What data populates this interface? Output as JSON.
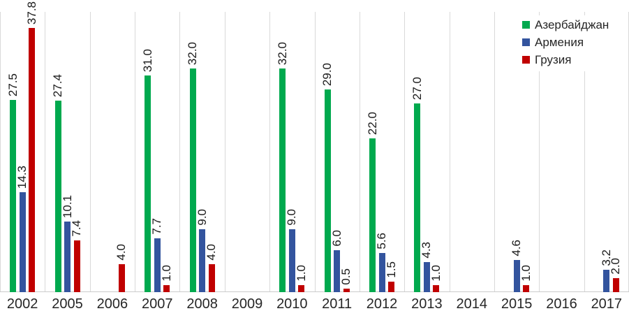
{
  "chart_data": {
    "type": "bar",
    "title": "",
    "xlabel": "",
    "ylabel": "",
    "ylim": [
      0,
      40
    ],
    "grid": "vertical-category-separators-only",
    "legend_position": "top-right",
    "value_label_rotation": "90deg-bottom-to-top",
    "value_label_decimals": 1,
    "categories": [
      "2002",
      "2005",
      "2006",
      "2007",
      "2008",
      "2009",
      "2010",
      "2011",
      "2012",
      "2013",
      "2014",
      "2015",
      "2016",
      "2017"
    ],
    "series": [
      {
        "key": "azerbaijan",
        "name": "Азербайджан",
        "color": "#00a94e",
        "values": [
          27.5,
          27.4,
          null,
          31.0,
          32.0,
          null,
          32.0,
          29.0,
          22.0,
          27.0,
          null,
          null,
          null,
          null
        ]
      },
      {
        "key": "armenia",
        "name": "Армения",
        "color": "#33549e",
        "values": [
          14.3,
          10.1,
          null,
          7.7,
          9.0,
          null,
          9.0,
          6.0,
          5.6,
          4.3,
          null,
          4.6,
          null,
          3.2
        ]
      },
      {
        "key": "georgia",
        "name": "Грузия",
        "color": "#c00000",
        "values": [
          37.8,
          7.4,
          4.0,
          1.0,
          4.0,
          null,
          1.0,
          0.5,
          1.5,
          1.0,
          null,
          1.0,
          null,
          2.0
        ]
      }
    ],
    "colors": {
      "grid": "#d9d9d9",
      "axis_line": "#cbcbcb",
      "axis_text": "#262626",
      "value_label_text": "#1a1a1a"
    }
  }
}
